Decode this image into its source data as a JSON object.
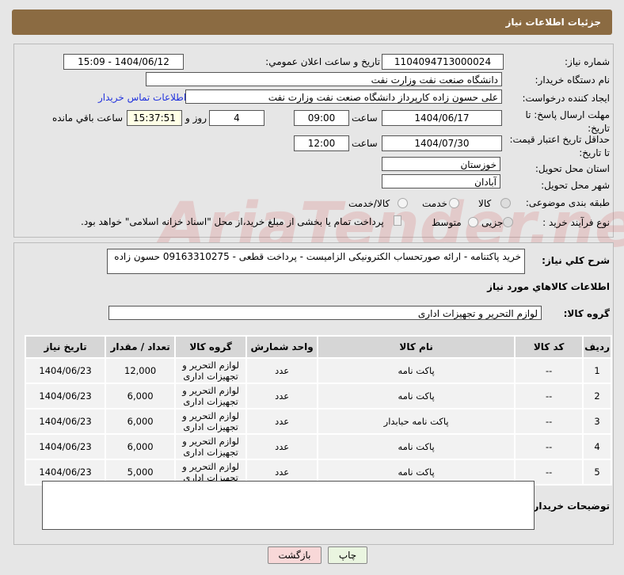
{
  "header": {
    "title": "جزئیات اطلاعات نیاز"
  },
  "form": {
    "need_no_label": "شماره نیاز:",
    "need_no": "1104094713000024",
    "announce_label": "تاریخ و ساعت اعلان عمومي:",
    "announce": "1404/06/12 - 15:09",
    "buyer_label": "نام دستگاه خریدار:",
    "buyer": "دانشگاه صنعت نفت وزارت نفت",
    "creator_label": "ایجاد کننده درخواست:",
    "creator": "علی حسون زاده کارپرداز دانشگاه صنعت نفت وزارت نفت",
    "contact_link": "اطلاعات تماس خریدار",
    "deadline_label": "مهلت ارسال پاسخ: تا تاریخ:",
    "deadline_date": "1404/06/17",
    "time_label": "ساعت",
    "deadline_time": "09:00",
    "days": "4",
    "days_label": "روز و",
    "remaining": "15:37:51",
    "remaining_label": "ساعت باقي مانده",
    "validity_label": "حداقل تاریخ اعتبار قیمت: تا تاریخ:",
    "validity_date": "1404/07/30",
    "validity_time": "12:00",
    "province_label": "استان محل تحویل:",
    "province": "خوزستان",
    "city_label": "شهر محل تحویل:",
    "city": "آبادان",
    "category_label": "طبقه بندی موضوعی:",
    "category_options": [
      "کالا",
      "خدمت",
      "کالا/خدمت"
    ],
    "process_label": "نوع فرآیند خرید :",
    "process_options": [
      "جزیی",
      "متوسط"
    ],
    "treasury_note": "پرداخت تمام یا بخشی از مبلغ خرید،از محل \"اسناد خزانه اسلامی\" خواهد بود."
  },
  "details": {
    "desc_label": "شرح کلي نیاز:",
    "desc": "خرید پاکتنامه - ارائه صورتحساب الکترونیکی الزامیست - پرداخت قطعی - 09163310275 حسون زاده",
    "goods_title": "اطلاعات کالاهاي مورد نیاز",
    "group_label": "گروه کالا:",
    "group": "لوازم التحریر و تجهیزات اداری",
    "columns": [
      "ردیف",
      "کد کالا",
      "نام کالا",
      "واحد شمارش",
      "گروه کالا",
      "تعداد / مقدار",
      "تاریخ نیاز"
    ],
    "rows": [
      [
        "1",
        "--",
        "پاکت نامه",
        "عدد",
        "لوازم التحریر و تجهیزات اداری",
        "12,000",
        "1404/06/23"
      ],
      [
        "2",
        "--",
        "پاکت نامه",
        "عدد",
        "لوازم التحریر و تجهیزات اداری",
        "6,000",
        "1404/06/23"
      ],
      [
        "3",
        "--",
        "پاکت نامه حبابدار",
        "عدد",
        "لوازم التحریر و تجهیزات اداری",
        "6,000",
        "1404/06/23"
      ],
      [
        "4",
        "--",
        "پاکت نامه",
        "عدد",
        "لوازم التحریر و تجهیزات اداری",
        "6,000",
        "1404/06/23"
      ],
      [
        "5",
        "--",
        "پاکت نامه",
        "عدد",
        "لوازم التحریر و تجهیزات اداری",
        "5,000",
        "1404/06/23"
      ]
    ],
    "notes_label": "توضیحات خریدار:"
  },
  "buttons": {
    "print": "چاپ",
    "back": "بازگشت"
  },
  "watermark": "AriaTender.net"
}
